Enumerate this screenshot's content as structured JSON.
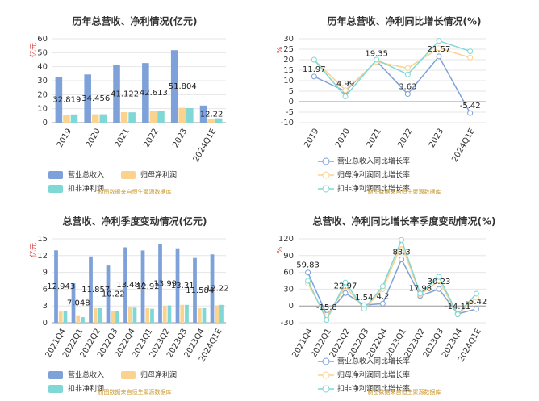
{
  "chart_data": [
    {
      "type": "bar",
      "title": "历年总营收、净利情况(亿元)",
      "y_label": "亿元",
      "source": "制图数据来自恒生聚源数据库",
      "categories": [
        "2019",
        "2020",
        "2021",
        "2022",
        "2023",
        "2024Q1E"
      ],
      "ylim": [
        0,
        60
      ],
      "yticks": [
        0,
        10,
        20,
        30,
        40,
        50,
        60
      ],
      "grid": true,
      "series": [
        {
          "name": "营业总收入",
          "color": "#7ea1d9",
          "show_labels": true,
          "values": [
            32.819,
            34.456,
            41.122,
            42.613,
            51.804,
            12.22
          ]
        },
        {
          "name": "归母净利润",
          "color": "#fbd38f",
          "values": [
            5.6,
            6.0,
            7.5,
            8.1,
            10.6,
            2.6
          ]
        },
        {
          "name": "扣非净利润",
          "color": "#7fd8d5",
          "values": [
            5.9,
            6.0,
            7.4,
            8.4,
            10.4,
            3.1
          ]
        }
      ]
    },
    {
      "type": "line",
      "title": "历年总营收、净利同比增长情况(%)",
      "y_label": "%",
      "source": "制图数据来自恒生聚源数据库",
      "categories": [
        "2019",
        "2020",
        "2021",
        "2022",
        "2023",
        "2024Q1E"
      ],
      "ylim": [
        -10,
        30
      ],
      "yticks": [
        -10,
        -5,
        0,
        5,
        10,
        15,
        20,
        25,
        30
      ],
      "grid": true,
      "series": [
        {
          "name": "营业总收入同比增长率",
          "color": "#7ea1d9",
          "show_labels": true,
          "values": [
            11.97,
            4.99,
            19.35,
            3.63,
            21.57,
            -5.42
          ]
        },
        {
          "name": "归母净利润同比增长率",
          "color": "#fbd38f",
          "values": [
            20,
            5.5,
            19,
            16,
            25.5,
            21
          ]
        },
        {
          "name": "扣非净利润同比增长率",
          "color": "#7fd8d5",
          "values": [
            20,
            2.5,
            20,
            13,
            29,
            24
          ]
        }
      ]
    },
    {
      "type": "bar",
      "title": "总营收、净利季度变动情况(亿元)",
      "y_label": "亿元",
      "source": "制图数据来自恒生聚源数据库",
      "categories": [
        "2021Q4",
        "2022Q1",
        "2022Q2",
        "2022Q3",
        "2022Q4",
        "2023Q1",
        "2023Q2",
        "2023Q3",
        "2023Q4",
        "2024Q1E"
      ],
      "ylim": [
        0,
        15
      ],
      "yticks": [
        0,
        3,
        6,
        9,
        12,
        15
      ],
      "grid": true,
      "series": [
        {
          "name": "营业总收入",
          "color": "#7ea1d9",
          "show_labels": true,
          "values": [
            12.943,
            7.048,
            11.857,
            10.22,
            13.487,
            12.92,
            13.99,
            13.31,
            11.584,
            12.22
          ]
        },
        {
          "name": "归母净利润",
          "color": "#fbd38f",
          "values": [
            2.0,
            1.2,
            2.6,
            2.1,
            2.8,
            2.6,
            3.0,
            3.2,
            2.6,
            3.1
          ]
        },
        {
          "name": "扣非净利润",
          "color": "#7fd8d5",
          "values": [
            2.1,
            1.0,
            2.6,
            2.1,
            2.7,
            2.5,
            3.1,
            3.2,
            2.6,
            3.2
          ]
        }
      ]
    },
    {
      "type": "line",
      "title": "总营收、净利同比增长率季度变动情况(%)",
      "y_label": "%",
      "source": "制图数据来自恒生聚源数据库",
      "categories": [
        "2021Q4",
        "2022Q1",
        "2022Q2",
        "2022Q3",
        "2022Q4",
        "2023Q1",
        "2023Q2",
        "2023Q3",
        "2023Q4",
        "2024Q1E"
      ],
      "ylim": [
        -30,
        120
      ],
      "yticks": [
        -30,
        0,
        30,
        60,
        90,
        120
      ],
      "grid": true,
      "series": [
        {
          "name": "营业总收入同比增长率",
          "color": "#7ea1d9",
          "show_labels": true,
          "values": [
            59.83,
            -15.8,
            22.97,
            1.54,
            4.2,
            83.3,
            17.98,
            30.23,
            -14.11,
            -5.42
          ]
        },
        {
          "name": "归母净利润同比增长率",
          "color": "#fbd38f",
          "values": [
            40,
            -20,
            35,
            -5,
            30,
            110,
            20,
            45,
            -15,
            15
          ]
        },
        {
          "name": "扣非净利润同比增长率",
          "color": "#7fd8d5",
          "values": [
            45,
            -25,
            42,
            -5,
            35,
            118,
            22,
            52,
            -15,
            22
          ]
        }
      ]
    }
  ]
}
